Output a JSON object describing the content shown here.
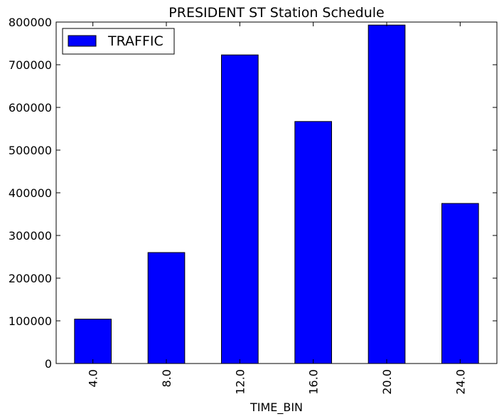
{
  "chart_data": {
    "type": "bar",
    "title": "PRESIDENT ST Station Schedule",
    "xlabel": "TIME_BIN",
    "ylabel": "",
    "categories": [
      "4.0",
      "8.0",
      "12.0",
      "16.0",
      "20.0",
      "24.0"
    ],
    "series": [
      {
        "name": "TRAFFIC",
        "values": [
          104000,
          260000,
          723000,
          567000,
          793000,
          375000
        ]
      }
    ],
    "ylim": [
      0,
      800000
    ],
    "yticks": [
      "0",
      "100000",
      "200000",
      "300000",
      "400000",
      "500000",
      "600000",
      "700000",
      "800000"
    ],
    "grid": false,
    "legend_position": "top-left",
    "bar_color": "#0000ff",
    "edge_color": "#000000"
  }
}
